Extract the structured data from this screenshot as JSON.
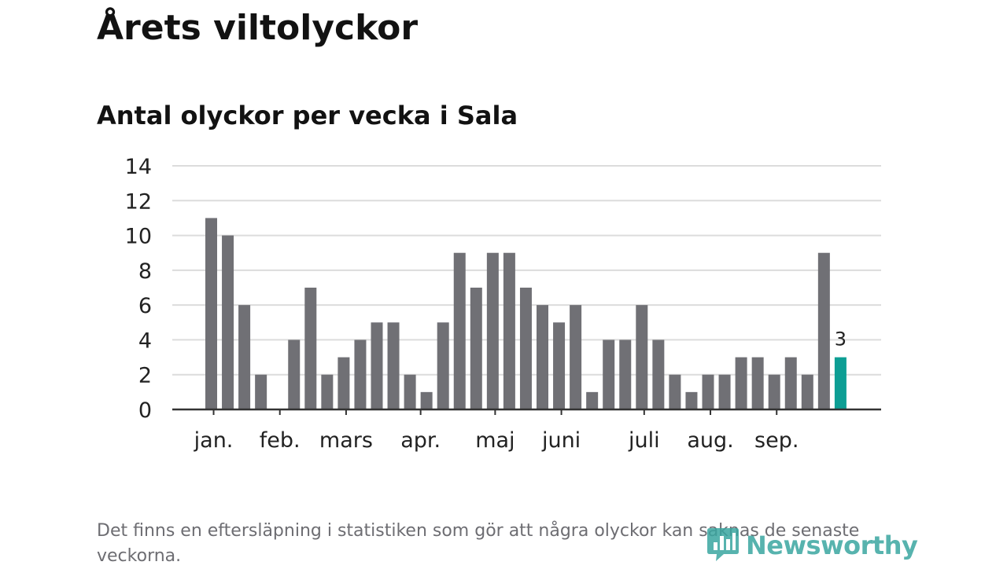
{
  "header": {
    "title": "Årets viltolyckor",
    "subtitle": "Antal olyckor per vecka i Sala"
  },
  "footer": {
    "note": "Det finns en eftersläpning i statistiken som gör att några olyckor kan saknas de senaste veckorna.",
    "brand": "Newsworthy",
    "brand_icon": "bar-chart-logo-icon"
  },
  "colors": {
    "bar": "#707075",
    "highlight": "#0d9e94",
    "grid": "#dcdcdc",
    "axis": "#333333",
    "brand": "#3aa6a0",
    "footnote": "#6d6d72"
  },
  "chart_data": {
    "type": "bar",
    "title": "Antal olyckor per vecka i Sala",
    "xlabel": "",
    "ylabel": "",
    "ylim": [
      0,
      14
    ],
    "yticks": [
      "0",
      "2",
      "4",
      "6",
      "8",
      "10",
      "12",
      "14"
    ],
    "grid": true,
    "values": [
      11,
      10,
      6,
      2,
      0,
      4,
      7,
      2,
      3,
      4,
      5,
      5,
      2,
      1,
      5,
      9,
      7,
      9,
      9,
      7,
      6,
      5,
      6,
      1,
      4,
      4,
      6,
      4,
      2,
      1,
      2,
      2,
      3,
      3,
      2,
      3,
      2,
      9,
      3
    ],
    "highlight_index": 38,
    "highlight_label": "3",
    "month_labels": [
      {
        "label": "jan.",
        "week": 0.5
      },
      {
        "label": "feb.",
        "week": 4.5
      },
      {
        "label": "mars",
        "week": 8.5
      },
      {
        "label": "apr.",
        "week": 13
      },
      {
        "label": "maj",
        "week": 17.5
      },
      {
        "label": "juni",
        "week": 21.5
      },
      {
        "label": "juli",
        "week": 26.5
      },
      {
        "label": "aug.",
        "week": 30.5
      },
      {
        "label": "sep.",
        "week": 34.5
      }
    ]
  }
}
